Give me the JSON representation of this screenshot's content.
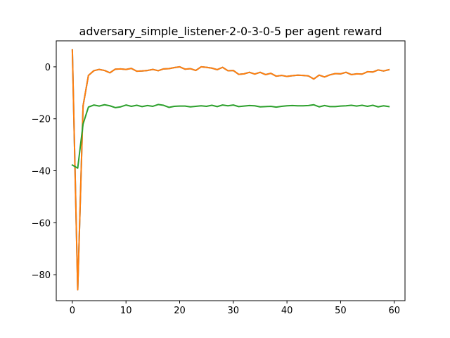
{
  "chart_data": {
    "type": "line",
    "title": "adversary_simple_listener-2-0-3-0-5 per agent reward",
    "xlabel": "",
    "ylabel": "",
    "xlim": [
      -3,
      62
    ],
    "ylim": [
      -90,
      10
    ],
    "xticks": [
      0,
      10,
      20,
      30,
      40,
      50,
      60
    ],
    "yticks": [
      0,
      -20,
      -40,
      -60,
      -80
    ],
    "ytick_labels": [
      "0",
      "−20",
      "−40",
      "−60",
      "−80"
    ],
    "grid": false,
    "legend": false,
    "x": [
      0,
      1,
      2,
      3,
      4,
      5,
      6,
      7,
      8,
      9,
      10,
      11,
      12,
      13,
      14,
      15,
      16,
      17,
      18,
      19,
      20,
      21,
      22,
      23,
      24,
      25,
      26,
      27,
      28,
      29,
      30,
      31,
      32,
      33,
      34,
      35,
      36,
      37,
      38,
      39,
      40,
      41,
      42,
      43,
      44,
      45,
      46,
      47,
      48,
      49,
      50,
      51,
      52,
      53,
      54,
      55,
      56,
      57,
      58,
      59
    ],
    "series": [
      {
        "color": "#1f77b4",
        "values": [
          6.5,
          -85.8,
          -15.0,
          -3.3,
          -1.5,
          -1.0,
          -1.4,
          -2.3,
          -0.9,
          -0.8,
          -1.0,
          -0.6,
          -1.7,
          -1.6,
          -1.4,
          -1.0,
          -1.5,
          -0.8,
          -0.7,
          -0.3,
          0.0,
          -0.9,
          -0.7,
          -1.4,
          0.0,
          -0.2,
          -0.5,
          -1.1,
          -0.2,
          -1.5,
          -1.4,
          -2.9,
          -2.7,
          -2.1,
          -2.8,
          -2.1,
          -3.0,
          -2.5,
          -3.6,
          -3.3,
          -3.7,
          -3.4,
          -3.2,
          -3.3,
          -3.5,
          -4.7,
          -3.2,
          -3.9,
          -3.1,
          -2.6,
          -2.7,
          -2.1,
          -3.0,
          -2.7,
          -2.8,
          -1.9,
          -2.0,
          -1.2,
          -1.6,
          -1.1
        ]
      },
      {
        "color": "#ff7f0e",
        "values": [
          6.5,
          -85.8,
          -15.0,
          -3.3,
          -1.5,
          -1.0,
          -1.4,
          -2.3,
          -0.9,
          -0.8,
          -1.0,
          -0.6,
          -1.7,
          -1.6,
          -1.4,
          -1.0,
          -1.5,
          -0.8,
          -0.7,
          -0.3,
          0.0,
          -0.9,
          -0.7,
          -1.4,
          0.0,
          -0.2,
          -0.5,
          -1.1,
          -0.2,
          -1.5,
          -1.4,
          -2.9,
          -2.7,
          -2.1,
          -2.8,
          -2.1,
          -3.0,
          -2.5,
          -3.6,
          -3.3,
          -3.7,
          -3.4,
          -3.2,
          -3.3,
          -3.5,
          -4.7,
          -3.2,
          -3.9,
          -3.1,
          -2.6,
          -2.7,
          -2.1,
          -3.0,
          -2.7,
          -2.8,
          -1.9,
          -2.0,
          -1.2,
          -1.6,
          -1.1
        ]
      },
      {
        "color": "#2ca02c",
        "values": [
          -37.8,
          -39.0,
          -22.0,
          -15.5,
          -14.7,
          -15.1,
          -14.6,
          -15.0,
          -15.7,
          -15.4,
          -14.7,
          -15.2,
          -14.8,
          -15.3,
          -14.9,
          -15.2,
          -14.5,
          -14.8,
          -15.6,
          -15.2,
          -15.1,
          -15.1,
          -15.4,
          -15.2,
          -15.0,
          -15.2,
          -14.8,
          -15.3,
          -14.7,
          -15.0,
          -14.7,
          -15.3,
          -15.1,
          -14.9,
          -15.0,
          -15.4,
          -15.3,
          -15.2,
          -15.5,
          -15.2,
          -15.0,
          -14.9,
          -15.0,
          -15.0,
          -14.9,
          -14.6,
          -15.4,
          -14.9,
          -15.3,
          -15.3,
          -15.1,
          -15.0,
          -14.8,
          -15.1,
          -14.8,
          -15.2,
          -14.8,
          -15.4,
          -15.0,
          -15.3
        ]
      }
    ]
  }
}
